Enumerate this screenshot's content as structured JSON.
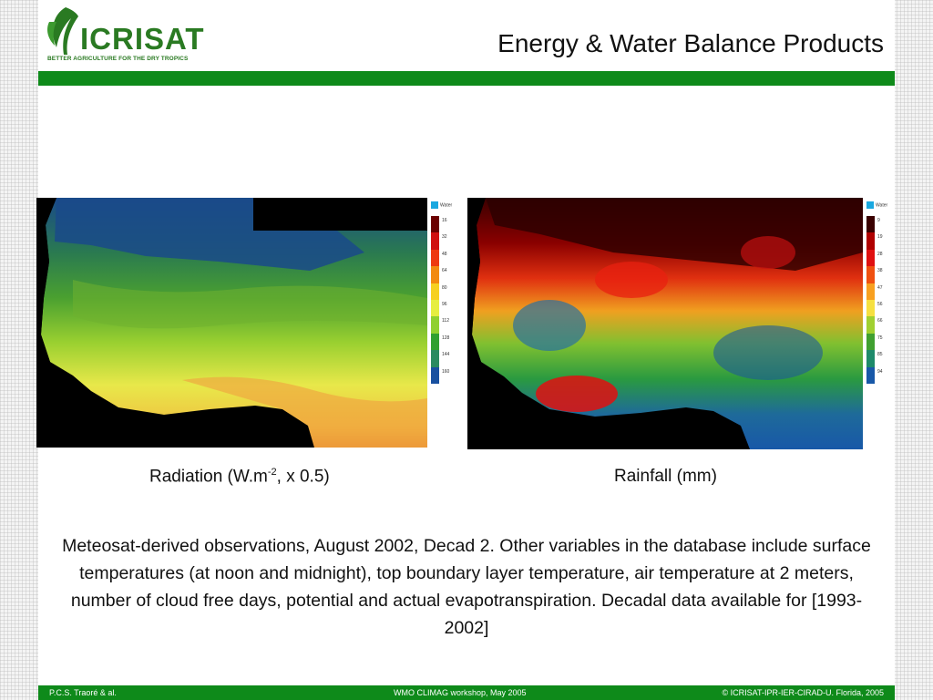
{
  "header": {
    "logo_text": "ICRISAT",
    "logo_tagline": "BETTER AGRICULTURE FOR THE DRY TROPICS",
    "title": "Energy & Water Balance Products"
  },
  "maps": [
    {
      "legend_water": "Water",
      "legend_values": [
        "16",
        "32",
        "48",
        "64",
        "80",
        "96",
        "112",
        "128",
        "144",
        "160"
      ],
      "legend_colors": [
        "#6b0000",
        "#d01010",
        "#ee3a10",
        "#f28a10",
        "#f6d020",
        "#e6ee40",
        "#90d030",
        "#30a030",
        "#2a8a60",
        "#1850a0"
      ],
      "caption_pre": "Radiation (W.m",
      "caption_sup": "-2",
      "caption_post": ", x 0.5)"
    },
    {
      "legend_water": "Water",
      "legend_values": [
        "9",
        "19",
        "28",
        "38",
        "47",
        "56",
        "66",
        "75",
        "85",
        "94"
      ],
      "legend_colors": [
        "#3a0000",
        "#b00000",
        "#e01010",
        "#f05010",
        "#f8a020",
        "#f6e040",
        "#a0d030",
        "#40a030",
        "#1e8a6a",
        "#1858a8"
      ],
      "caption": "Rainfall (mm)"
    }
  ],
  "body_text": "Meteosat-derived observations, August 2002, Decad 2. Other variables in the database include surface temperatures (at noon and midnight), top boundary layer temperature, air temperature at 2 meters, number of cloud free days, potential and actual evapotranspiration. Decadal data available for [1993-2002]",
  "footer": {
    "left": "P.C.S. Traoré & al.",
    "center": "WMO CLIMAG workshop, May 2005",
    "right": "© ICRISAT-IPR-IER-CIRAD-U. Florida, 2005"
  },
  "colors": {
    "brand_green": "#0e8a1a",
    "logo_green": "#2a7a22",
    "water_blue": "#1aa8e0"
  }
}
